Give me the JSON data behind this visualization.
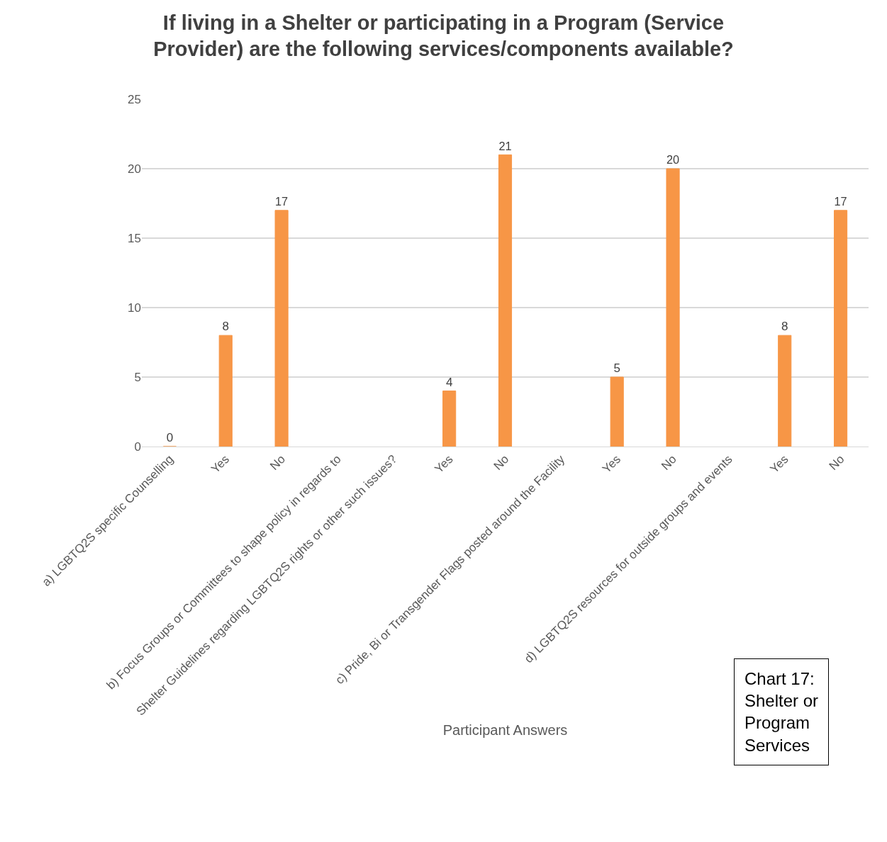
{
  "chart_data": {
    "type": "bar",
    "title": "If living in a Shelter or participating in a Program (Service Provider) are the following services/components available?",
    "xlabel": "Participant Answers",
    "categories": [
      "a) LGBTQ2S specific Counselling",
      "Yes",
      "No",
      "b) Focus Groups or Committees to shape policy in regards to",
      "Shelter Guidelines regarding LGBTQ2S rights or other such issues?",
      "Yes",
      "No",
      "c) Pride, Bi or Transgender Flags posted around the Facility",
      "Yes",
      "No",
      "d) LGBTQ2S resources for outside groups and events",
      "Yes",
      "No"
    ],
    "values": [
      0,
      8,
      17,
      null,
      null,
      4,
      21,
      null,
      5,
      20,
      null,
      8,
      17
    ],
    "color": "#f79646",
    "ylim": [
      0,
      25
    ],
    "yticks": [
      0,
      5,
      10,
      15,
      20,
      25
    ],
    "grid": "y",
    "data_labels": true,
    "annotations": [
      "Chart 17: Shelter or Program Services"
    ]
  }
}
